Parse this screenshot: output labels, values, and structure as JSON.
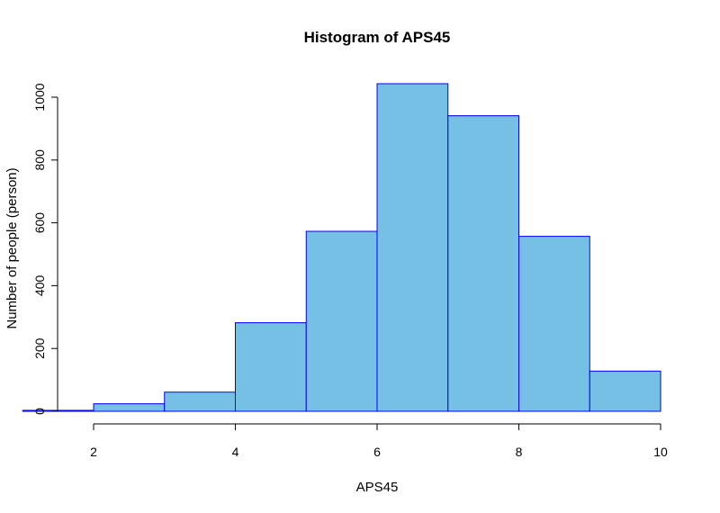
{
  "chart_data": {
    "type": "bar",
    "title": "Histogram of APS45",
    "xlabel": "APS45",
    "ylabel": "Number of people (person)",
    "bins": [
      {
        "start": 1,
        "end": 2,
        "value": 3
      },
      {
        "start": 2,
        "end": 3,
        "value": 24
      },
      {
        "start": 3,
        "end": 4,
        "value": 61
      },
      {
        "start": 4,
        "end": 5,
        "value": 282
      },
      {
        "start": 5,
        "end": 6,
        "value": 573
      },
      {
        "start": 6,
        "end": 7,
        "value": 1043
      },
      {
        "start": 7,
        "end": 8,
        "value": 941
      },
      {
        "start": 8,
        "end": 9,
        "value": 557
      },
      {
        "start": 9,
        "end": 10,
        "value": 128
      }
    ],
    "xticks": [
      "2",
      "4",
      "6",
      "8",
      "10"
    ],
    "yticks": [
      "0",
      "200",
      "400",
      "600",
      "800",
      "1000"
    ],
    "xlim": [
      2,
      10
    ],
    "ylim": [
      0,
      1000
    ],
    "grid": false,
    "colors": {
      "fill": "#76C0E5",
      "border": "#0000FF"
    }
  }
}
